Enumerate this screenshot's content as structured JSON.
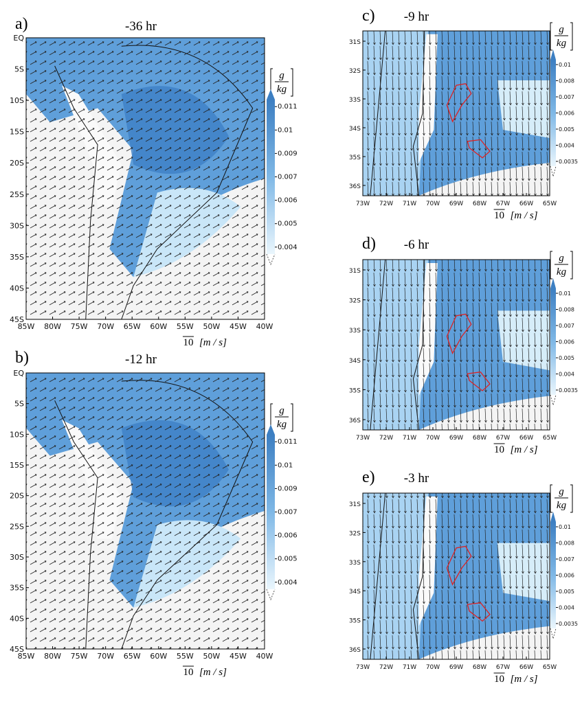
{
  "panels": [
    {
      "label": "a)",
      "title": "-36 hr",
      "x_ticks": [
        "85W",
        "80W",
        "75W",
        "70W",
        "65W",
        "60W",
        "55W",
        "50W",
        "45W",
        "40W"
      ],
      "y_ticks": [
        "EQ",
        "5S",
        "10S",
        "15S",
        "20S",
        "25S",
        "30S",
        "35S",
        "40S",
        "45S"
      ],
      "colorbar_unit_num": "g",
      "colorbar_unit_den": "kg",
      "colorbar_ticks": [
        "0.011",
        "0.01",
        "0.009",
        "0.007",
        "0.006",
        "0.005",
        "0.004"
      ],
      "vector_ref": "10",
      "vector_unit": "[m / s]"
    },
    {
      "label": "b)",
      "title": "-12 hr",
      "x_ticks": [
        "85W",
        "80W",
        "75W",
        "70W",
        "65W",
        "60W",
        "55W",
        "50W",
        "45W",
        "40W"
      ],
      "y_ticks": [
        "EQ",
        "5S",
        "10S",
        "15S",
        "20S",
        "25S",
        "30S",
        "35S",
        "40S",
        "45S"
      ],
      "colorbar_unit_num": "g",
      "colorbar_unit_den": "kg",
      "colorbar_ticks": [
        "0.011",
        "0.01",
        "0.009",
        "0.007",
        "0.006",
        "0.005",
        "0.004"
      ],
      "vector_ref": "10",
      "vector_unit": "[m / s]"
    },
    {
      "label": "c)",
      "title": "-9 hr",
      "x_ticks": [
        "73W",
        "72W",
        "71W",
        "70W",
        "69W",
        "68W",
        "67W",
        "66W",
        "65W"
      ],
      "y_ticks": [
        "31S",
        "32S",
        "33S",
        "34S",
        "35S",
        "36S"
      ],
      "colorbar_unit_num": "g",
      "colorbar_unit_den": "kg",
      "colorbar_ticks": [
        "0.01",
        "0.008",
        "0.007",
        "0.006",
        "0.005",
        "0.004",
        "0.0035"
      ],
      "vector_ref": "10",
      "vector_unit": "[m / s]"
    },
    {
      "label": "d)",
      "title": "-6 hr",
      "x_ticks": [
        "73W",
        "72W",
        "71W",
        "70W",
        "69W",
        "68W",
        "67W",
        "66W",
        "65W"
      ],
      "y_ticks": [
        "31S",
        "32S",
        "33S",
        "34S",
        "35S",
        "36S"
      ],
      "colorbar_unit_num": "g",
      "colorbar_unit_den": "kg",
      "colorbar_ticks": [
        "0.01",
        "0.008",
        "0.007",
        "0.006",
        "0.005",
        "0.004",
        "0.0035"
      ],
      "vector_ref": "10",
      "vector_unit": "[m / s]"
    },
    {
      "label": "e)",
      "title": "-3 hr",
      "x_ticks": [
        "73W",
        "72W",
        "71W",
        "70W",
        "69W",
        "68W",
        "67W",
        "66W",
        "65W"
      ],
      "y_ticks": [
        "31S",
        "32S",
        "33S",
        "34S",
        "35S",
        "36S"
      ],
      "colorbar_unit_num": "g",
      "colorbar_unit_den": "kg",
      "colorbar_ticks": [
        "0.01",
        "0.008",
        "0.007",
        "0.006",
        "0.005",
        "0.004",
        "0.0035"
      ],
      "vector_ref": "10",
      "vector_unit": "[m / s]"
    }
  ]
}
